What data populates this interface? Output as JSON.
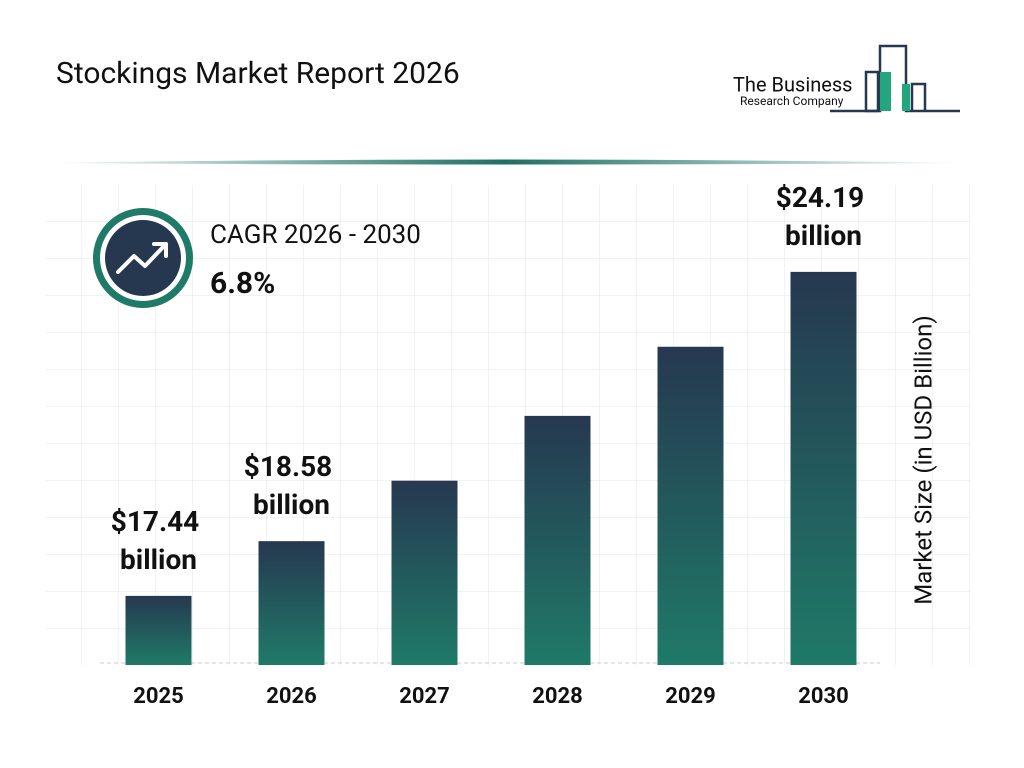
{
  "brand": {
    "line1": "The Business",
    "line2": "Research Company"
  },
  "chart_data": {
    "type": "bar",
    "title": "Stockings Market Report 2026",
    "cagr_label": "CAGR 2026 - 2030",
    "cagr_value": "6.8%",
    "y_label": "Market Size (in USD Billion)",
    "categories": [
      "2025",
      "2026",
      "2027",
      "2028",
      "2029",
      "2030"
    ],
    "values": [
      17.44,
      18.58,
      19.84,
      21.19,
      22.63,
      24.19
    ],
    "value_labels": [
      "$17.44 billion",
      "$18.58 billion",
      null,
      null,
      null,
      "$24.19 billion"
    ],
    "color": [
      "#263850",
      "#1f7a68"
    ],
    "ylim": [
      16,
      26
    ]
  }
}
